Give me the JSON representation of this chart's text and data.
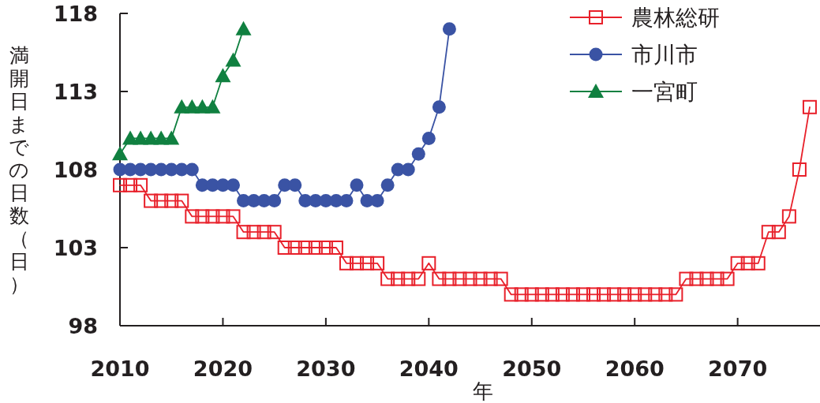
{
  "chart_data": {
    "type": "line",
    "xlabel": "年",
    "ylabel": "満開日までの日数（日）",
    "xlim": [
      2010,
      2078
    ],
    "ylim": [
      98,
      118
    ],
    "xticks": [
      2010,
      2020,
      2030,
      2040,
      2050,
      2060,
      2070
    ],
    "yticks": [
      98,
      103,
      108,
      113,
      118
    ],
    "grid": false,
    "legend": "top right",
    "series": [
      {
        "name": "農林総研",
        "color": "#e8202a",
        "marker": "square",
        "x": [
          2010,
          2011,
          2012,
          2013,
          2014,
          2015,
          2016,
          2017,
          2018,
          2019,
          2020,
          2021,
          2022,
          2023,
          2024,
          2025,
          2026,
          2027,
          2028,
          2029,
          2030,
          2031,
          2032,
          2033,
          2034,
          2035,
          2036,
          2037,
          2038,
          2039,
          2040,
          2041,
          2042,
          2043,
          2044,
          2045,
          2046,
          2047,
          2048,
          2049,
          2050,
          2051,
          2052,
          2053,
          2054,
          2055,
          2056,
          2057,
          2058,
          2059,
          2060,
          2061,
          2062,
          2063,
          2064,
          2065,
          2066,
          2067,
          2068,
          2069,
          2070,
          2071,
          2072,
          2073,
          2074,
          2075,
          2076,
          2077
        ],
        "values": [
          107,
          107,
          107,
          106,
          106,
          106,
          106,
          105,
          105,
          105,
          105,
          105,
          104,
          104,
          104,
          104,
          103,
          103,
          103,
          103,
          103,
          103,
          102,
          102,
          102,
          102,
          101,
          101,
          101,
          101,
          102,
          101,
          101,
          101,
          101,
          101,
          101,
          101,
          100,
          100,
          100,
          100,
          100,
          100,
          100,
          100,
          100,
          100,
          100,
          100,
          100,
          100,
          100,
          100,
          100,
          101,
          101,
          101,
          101,
          101,
          102,
          102,
          102,
          104,
          104,
          105,
          108,
          112
        ]
      },
      {
        "name": "市川市",
        "color": "#3a53a4",
        "marker": "circle",
        "x": [
          2010,
          2011,
          2012,
          2013,
          2014,
          2015,
          2016,
          2017,
          2018,
          2019,
          2020,
          2021,
          2022,
          2023,
          2024,
          2025,
          2026,
          2027,
          2028,
          2029,
          2030,
          2031,
          2032,
          2033,
          2034,
          2035,
          2036,
          2037,
          2038,
          2039,
          2040,
          2041,
          2042
        ],
        "values": [
          108,
          108,
          108,
          108,
          108,
          108,
          108,
          108,
          107,
          107,
          107,
          107,
          106,
          106,
          106,
          106,
          107,
          107,
          106,
          106,
          106,
          106,
          106,
          107,
          106,
          106,
          107,
          108,
          108,
          109,
          110,
          112,
          117
        ]
      },
      {
        "name": "一宮町",
        "color": "#108040",
        "marker": "triangle",
        "x": [
          2010,
          2011,
          2012,
          2013,
          2014,
          2015,
          2016,
          2017,
          2018,
          2019,
          2020,
          2021,
          2022
        ],
        "values": [
          109,
          110,
          110,
          110,
          110,
          110,
          112,
          112,
          112,
          112,
          114,
          115,
          117
        ]
      }
    ]
  }
}
